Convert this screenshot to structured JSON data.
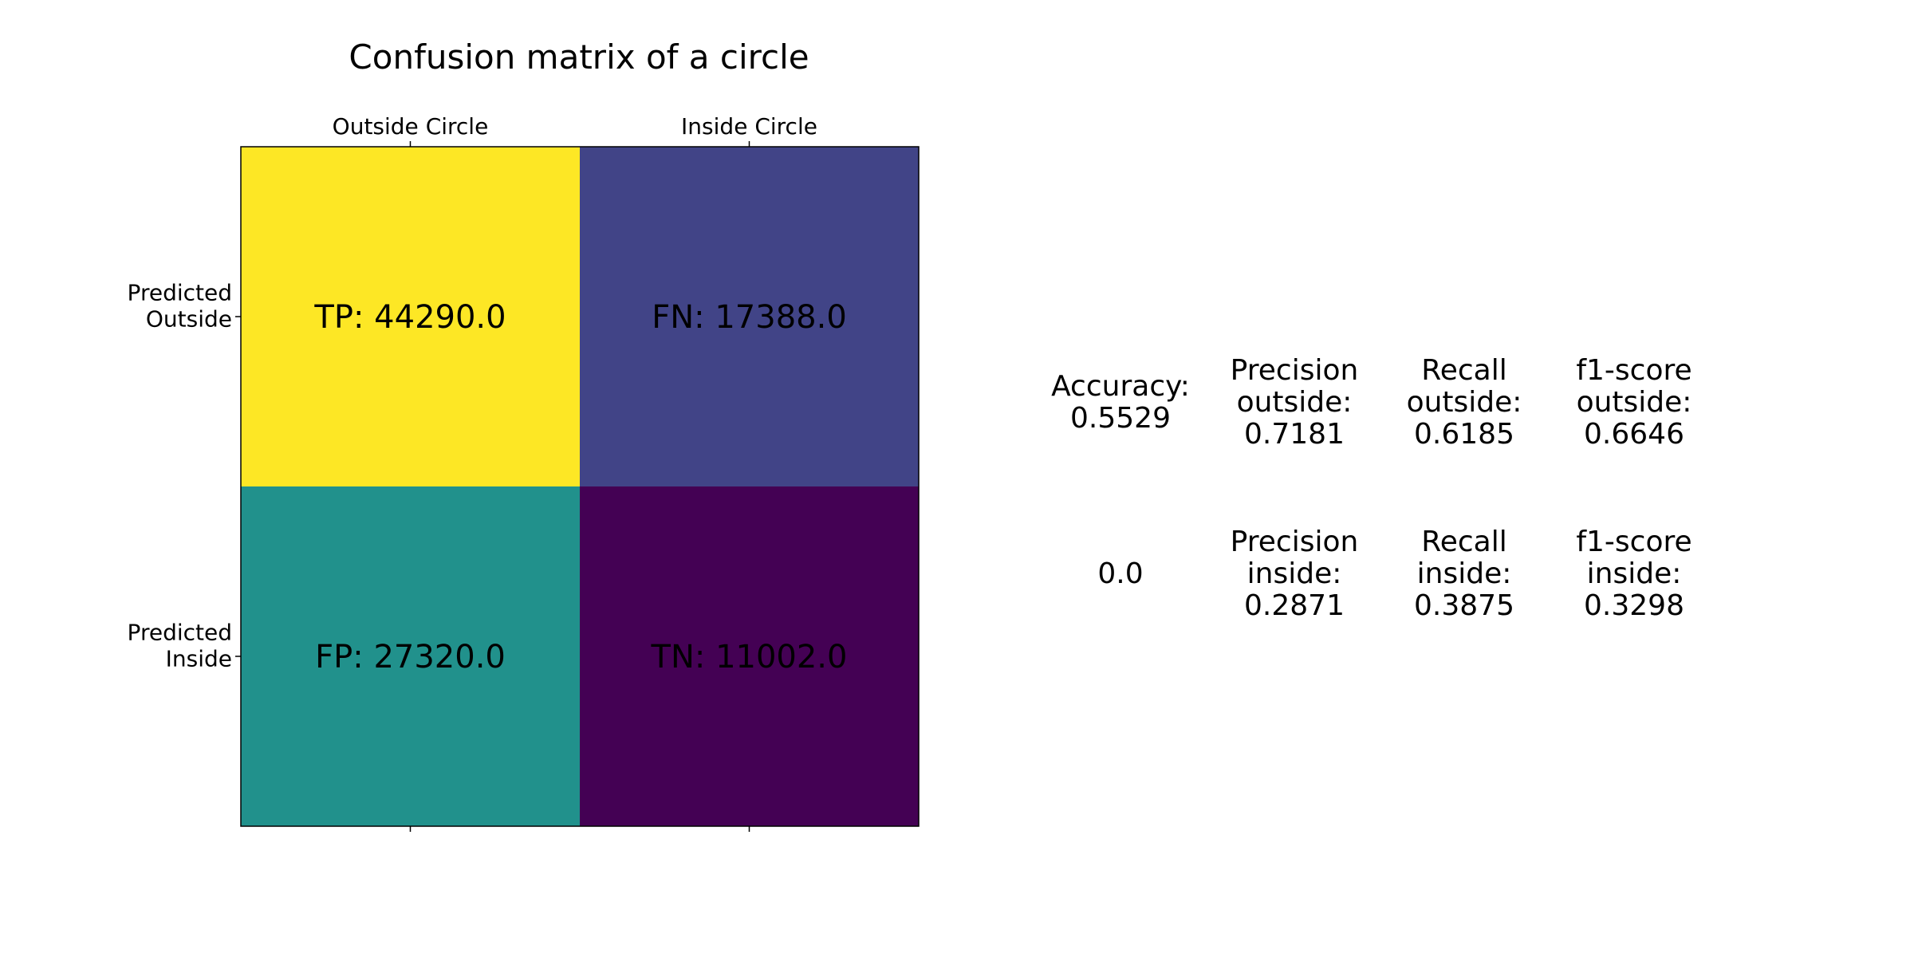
{
  "chart_data": {
    "type": "heatmap",
    "title": "Confusion matrix of a circle",
    "column_labels": [
      "Outside Circle",
      "Inside Circle"
    ],
    "row_labels": [
      [
        "Predicted",
        "Outside"
      ],
      [
        "Predicted",
        "Inside"
      ]
    ],
    "values": [
      [
        44290.0,
        17388.0
      ],
      [
        27320.0,
        11002.0
      ]
    ],
    "cell_labels": [
      [
        "TP: 44290.0",
        "FN: 17388.0"
      ],
      [
        "FP: 27320.0",
        "TN: 11002.0"
      ]
    ],
    "colormap": "viridis",
    "colors": [
      [
        "#fde725",
        "#414487"
      ],
      [
        "#21918c",
        "#440154"
      ]
    ]
  },
  "metrics": {
    "rows": [
      [
        {
          "lines": [
            "Accuracy:",
            "0.5529"
          ]
        },
        {
          "lines": [
            "Precision",
            "outside:",
            "0.7181"
          ]
        },
        {
          "lines": [
            "Recall",
            "outside:",
            "0.6185"
          ]
        },
        {
          "lines": [
            "f1-score",
            "outside:",
            "0.6646"
          ]
        }
      ],
      [
        {
          "lines": [
            "0.0"
          ]
        },
        {
          "lines": [
            "Precision",
            "inside:",
            "0.2871"
          ]
        },
        {
          "lines": [
            "Recall",
            "inside:",
            "0.3875"
          ]
        },
        {
          "lines": [
            "f1-score",
            "inside:",
            "0.3298"
          ]
        }
      ]
    ]
  }
}
